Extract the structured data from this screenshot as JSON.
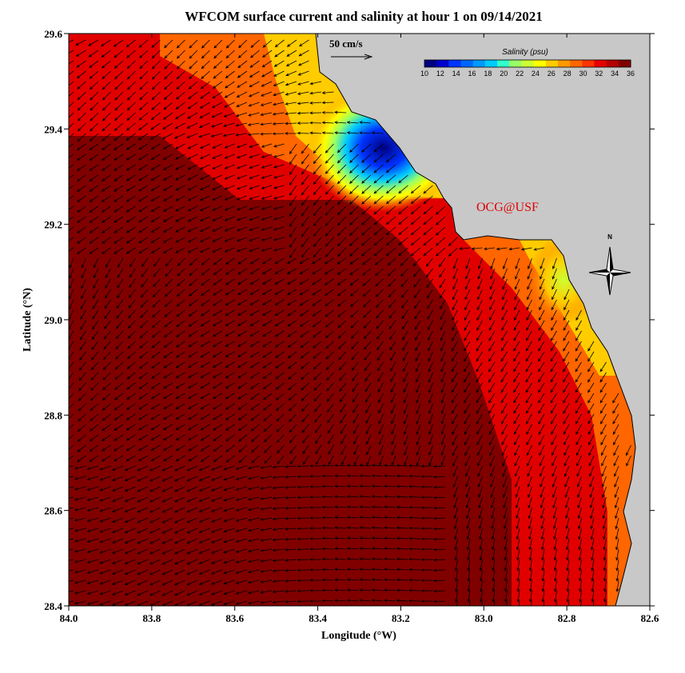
{
  "title": "WFCOM surface current and salinity at hour 1 on 09/14/2021",
  "x_axis": {
    "label": "Longitude (°W)",
    "range": [
      84.0,
      82.6
    ],
    "ticks": [
      "84.0",
      "83.8",
      "83.6",
      "83.4",
      "83.2",
      "83.0",
      "82.8",
      "82.6"
    ]
  },
  "y_axis": {
    "label": "Latitude (°N)",
    "range": [
      28.4,
      29.6
    ],
    "ticks": [
      "28.4",
      "28.6",
      "28.8",
      "29.0",
      "29.2",
      "29.4",
      "29.6"
    ]
  },
  "scale_vector": {
    "label": "50 cm/s",
    "speed_cm_s": 50
  },
  "colorbar": {
    "title": "Salinity (psu)",
    "range": [
      10,
      36
    ],
    "ticks": [
      "10",
      "12",
      "14",
      "16",
      "18",
      "20",
      "22",
      "24",
      "26",
      "28",
      "30",
      "32",
      "34",
      "36"
    ],
    "colors": [
      "#000080",
      "#0000cc",
      "#0033ff",
      "#0066ff",
      "#0099ff",
      "#00ccff",
      "#33ffcc",
      "#99ff66",
      "#ccff33",
      "#ffff00",
      "#ffcc00",
      "#ff9900",
      "#ff6600",
      "#ff3300",
      "#e60000",
      "#b30000",
      "#800000"
    ]
  },
  "credit": "OCG@USF",
  "north_arrow": {
    "label": "N"
  },
  "colors": {
    "land": "#c8c8c8",
    "coast": "#000000",
    "vector": "#000000"
  },
  "chart_data": {
    "type": "heatmap",
    "field": "surface salinity (psu) with surface current vectors",
    "xlim": [
      84.0,
      82.6
    ],
    "ylim": [
      28.4,
      29.6
    ],
    "salinity_features": [
      {
        "name": "low-salinity plume",
        "lon": 83.25,
        "lat": 29.33,
        "salinity_psu": 10
      },
      {
        "name": "fresh coastal water",
        "lon": 82.72,
        "lat": 29.1,
        "salinity_psu": 26
      },
      {
        "name": "offshore",
        "lon": 83.8,
        "lat": 28.6,
        "salinity_psu": 36
      }
    ],
    "vector_scale_cm_s": 50
  }
}
